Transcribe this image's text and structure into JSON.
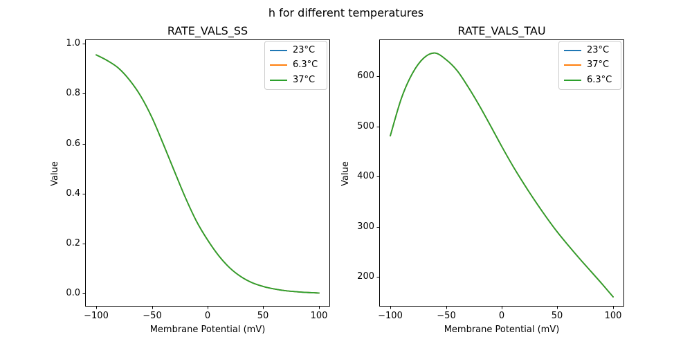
{
  "figure": {
    "suptitle": "h for different temperatures",
    "background_color": "#ffffff",
    "text_color": "#000000",
    "spine_color": "#000000",
    "legend_border_color": "#cccccc"
  },
  "chart_data": [
    {
      "type": "line",
      "title": "RATE_VALS_SS",
      "xlabel": "Membrane Potential (mV)",
      "ylabel": "Value",
      "grid": false,
      "legend_loc": "upper right",
      "series_overlap": "all three temperature curves coincide exactly; only the last-drawn (green) is visible",
      "series": [
        {
          "name": "23°C",
          "color": "#1f77b4"
        },
        {
          "name": "6.3°C",
          "color": "#ff7f0e"
        },
        {
          "name": "37°C",
          "color": "#2ca02c"
        }
      ],
      "x": [
        -100,
        -90,
        -80,
        -70,
        -60,
        -50,
        -40,
        -30,
        -20,
        -10,
        0,
        10,
        20,
        30,
        40,
        50,
        60,
        70,
        80,
        90,
        100
      ],
      "values": [
        0.955,
        0.932,
        0.902,
        0.854,
        0.79,
        0.705,
        0.601,
        0.492,
        0.385,
        0.29,
        0.215,
        0.152,
        0.103,
        0.068,
        0.044,
        0.029,
        0.019,
        0.012,
        0.008,
        0.005,
        0.003
      ],
      "xticks": [
        -100,
        -50,
        0,
        50,
        100
      ],
      "xtick_labels": [
        "−100",
        "−50",
        "0",
        "50",
        "100"
      ],
      "yticks": [
        0.0,
        0.2,
        0.4,
        0.6,
        0.8,
        1.0
      ],
      "ytick_labels": [
        "0.0",
        "0.2",
        "0.4",
        "0.6",
        "0.8",
        "1.0"
      ],
      "xlim": [
        -109.94,
        109.94
      ],
      "ylim": [
        -0.0512,
        1.0166
      ]
    },
    {
      "type": "line",
      "title": "RATE_VALS_TAU",
      "xlabel": "Membrane Potential (mV)",
      "ylabel": "Value",
      "grid": false,
      "legend_loc": "upper right",
      "series_overlap": "all three temperature curves coincide exactly; only the last-drawn (green) is visible",
      "series": [
        {
          "name": "23°C",
          "color": "#1f77b4"
        },
        {
          "name": "37°C",
          "color": "#ff7f0e"
        },
        {
          "name": "6.3°C",
          "color": "#2ca02c"
        }
      ],
      "x": [
        -100,
        -90,
        -80,
        -70,
        -60,
        -50,
        -40,
        -30,
        -20,
        -10,
        0,
        10,
        20,
        30,
        40,
        50,
        60,
        70,
        80,
        90,
        100
      ],
      "values": [
        481,
        556,
        606,
        636,
        646,
        633,
        611,
        578,
        541,
        501,
        460,
        421,
        385,
        351,
        319,
        289,
        262,
        236,
        211,
        186,
        160
      ],
      "xticks": [
        -100,
        -50,
        0,
        50,
        100
      ],
      "xtick_labels": [
        "−100",
        "−50",
        "0",
        "50",
        "100"
      ],
      "yticks": [
        200,
        300,
        400,
        500,
        600
      ],
      "ytick_labels": [
        "200",
        "300",
        "400",
        "500",
        "600"
      ],
      "xlim": [
        -109.94,
        109.94
      ],
      "ylim": [
        140.7,
        673.1
      ]
    }
  ]
}
